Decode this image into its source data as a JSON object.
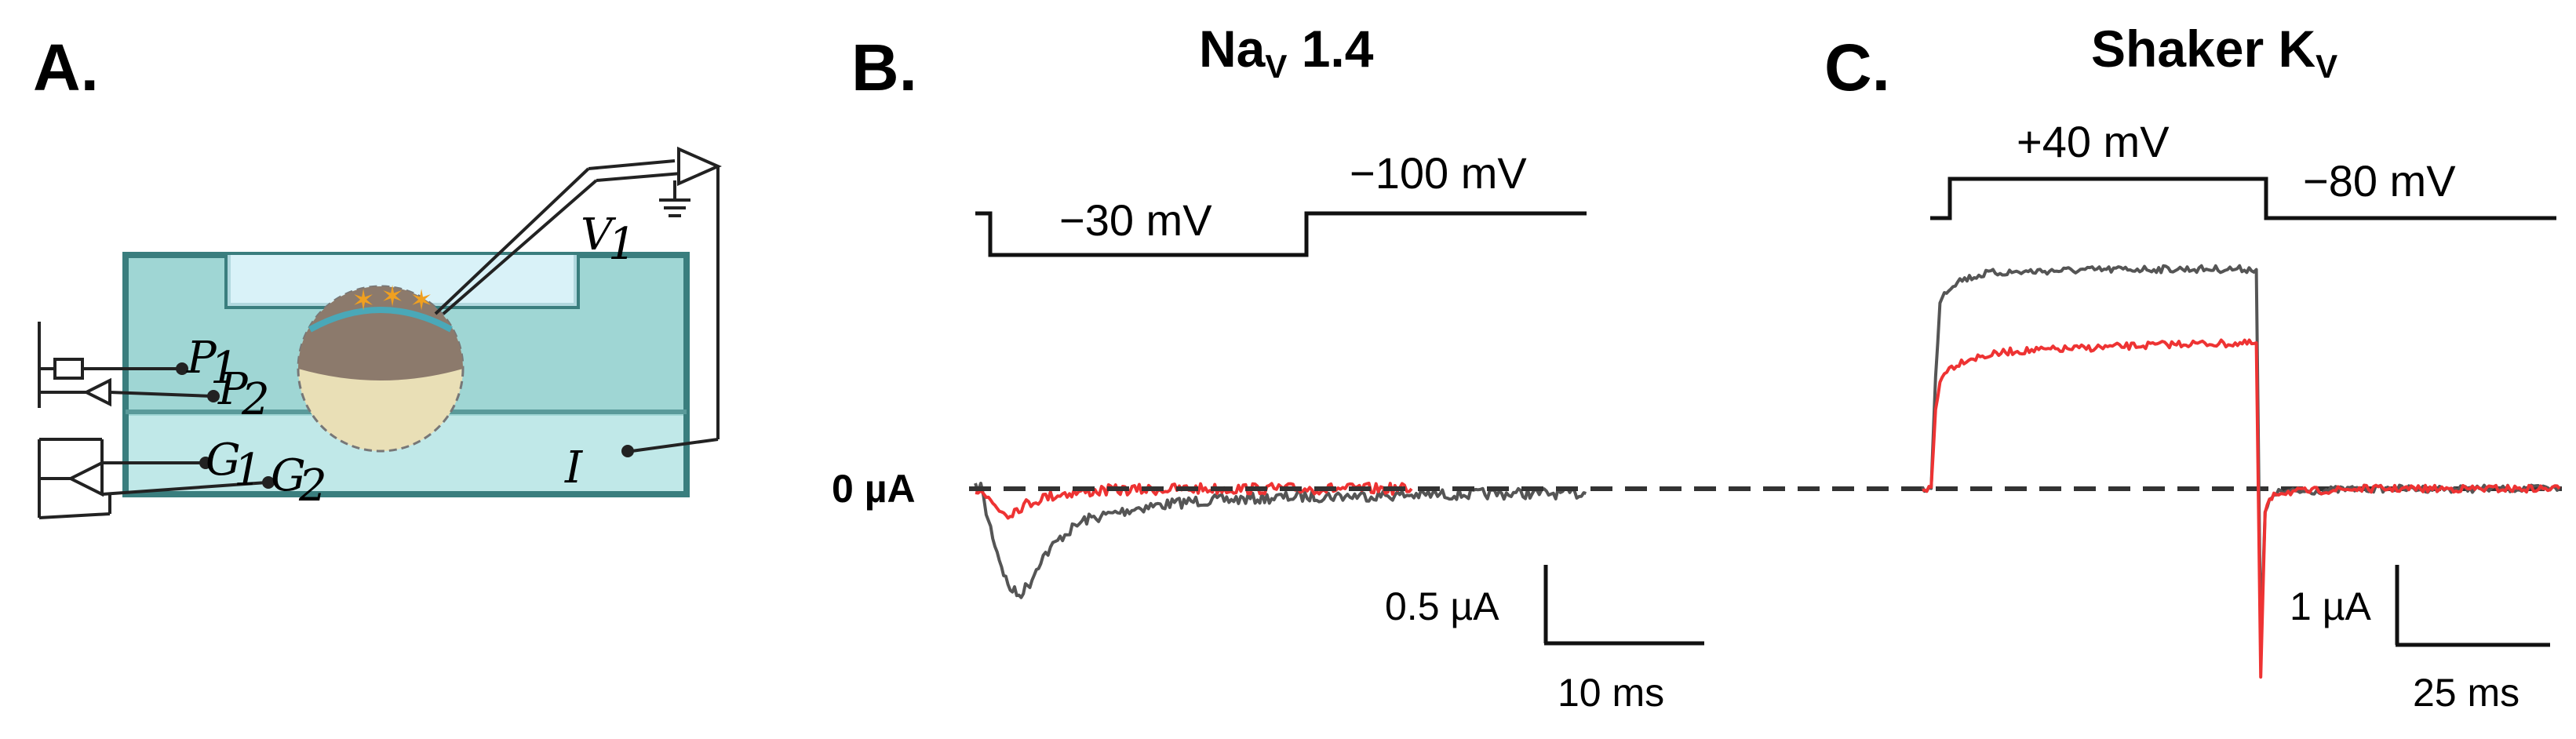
{
  "panels": {
    "a": {
      "letter": "A.",
      "labels": {
        "v": "V",
        "v_sub": "1",
        "p1": "P",
        "p1_sub": "1",
        "p2": "P",
        "p2_sub": "2",
        "g1": "G",
        "g1_sub": "1",
        "g2": "G",
        "g2_sub": "2",
        "i": "I"
      }
    },
    "b": {
      "letter": "B.",
      "title_main": "Na",
      "title_sub": "V",
      "title_rest": " 1.4",
      "step_label": "−30 mV",
      "hold_label": "−100 mV",
      "scale_y": "0.5 µA",
      "scale_x": "10 ms"
    },
    "c": {
      "letter": "C.",
      "title_main": "Shaker K",
      "title_sub": "V",
      "step_label": "+40 mV",
      "hold_label": "−80 mV",
      "scale_y": "1 µA",
      "scale_x": "25 ms"
    }
  },
  "zero_label": "0 µA",
  "colors": {
    "trace_dark": "#555555",
    "trace_red": "#ee3333",
    "baseline": "#333333",
    "water": "#7cc6c4",
    "water_light": "#bfe6ea",
    "oocyte": "#8c7a6c",
    "oocyte_light": "#e9dfb6",
    "channel": "#f0a020"
  },
  "chart_data": [
    {
      "type": "line",
      "title": "Na_V 1.4",
      "x_unit": "ms",
      "y_unit": "µA",
      "scale_bars": {
        "x": 10,
        "y": 0.5
      },
      "voltage_protocol": [
        {
          "level": "−100 mV"
        },
        {
          "level": "−30 mV"
        },
        {
          "level": "−100 mV"
        }
      ],
      "series": [
        {
          "color": "#555555",
          "x": [
            0,
            0.5,
            1,
            2,
            3,
            4,
            5,
            6,
            8,
            10,
            15,
            20,
            30,
            40,
            50,
            56
          ],
          "y": [
            0,
            0.02,
            -0.15,
            -0.4,
            -0.62,
            -0.68,
            -0.6,
            -0.45,
            -0.3,
            -0.2,
            -0.12,
            -0.08,
            -0.05,
            -0.04,
            -0.03,
            -0.03
          ]
        },
        {
          "color": "#ee3333",
          "x": [
            0,
            0.5,
            1,
            2,
            3,
            4,
            6,
            8,
            12,
            20,
            30,
            40
          ],
          "y": [
            0,
            0.01,
            -0.05,
            -0.12,
            -0.16,
            -0.12,
            -0.06,
            -0.03,
            -0.01,
            0,
            0,
            0
          ]
        }
      ]
    },
    {
      "type": "line",
      "title": "Shaker K_V",
      "x_unit": "ms",
      "y_unit": "µA",
      "scale_bars": {
        "x": 25,
        "y": 1
      },
      "voltage_protocol": [
        {
          "level": "−80 mV"
        },
        {
          "level": "+40 mV"
        },
        {
          "level": "−80 mV"
        }
      ],
      "series": [
        {
          "color": "#555555",
          "x": [
            0,
            2,
            3,
            4,
            5,
            8,
            15,
            30,
            50,
            70,
            76,
            77,
            78,
            80,
            100,
            145
          ],
          "y": [
            0,
            0,
            1.4,
            2.4,
            2.5,
            2.65,
            2.75,
            2.78,
            2.8,
            2.8,
            2.8,
            -2.0,
            -0.3,
            -0.05,
            0,
            0
          ]
        },
        {
          "color": "#ee3333",
          "x": [
            0,
            2,
            3,
            4,
            5,
            10,
            20,
            40,
            60,
            76,
            77,
            78,
            80,
            100,
            145
          ],
          "y": [
            0,
            0,
            1.0,
            1.35,
            1.5,
            1.65,
            1.75,
            1.8,
            1.85,
            1.85,
            -2.4,
            -0.3,
            -0.05,
            0,
            0
          ]
        }
      ]
    }
  ]
}
